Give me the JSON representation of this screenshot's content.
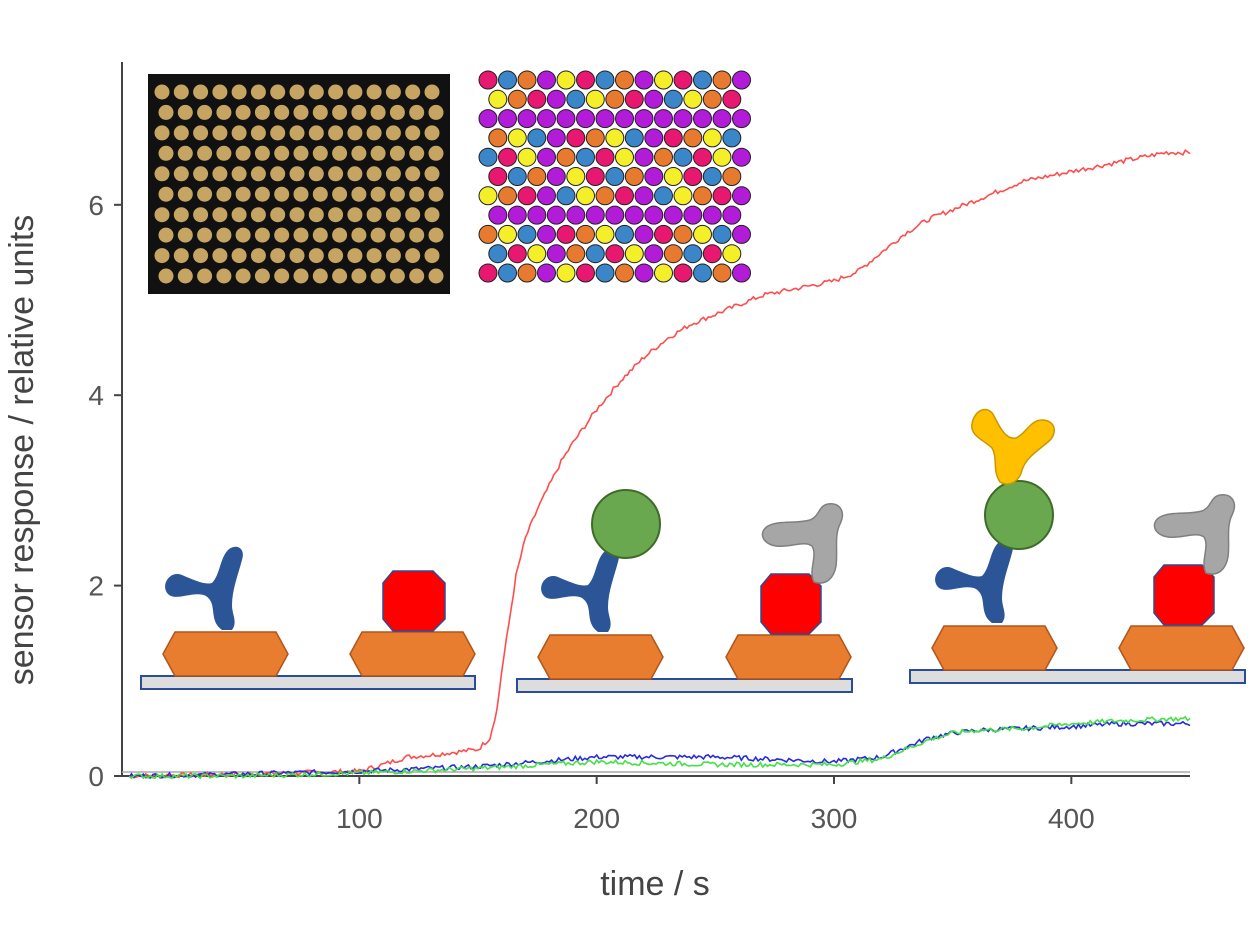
{
  "chart_data": {
    "type": "line",
    "xlabel": "time / s",
    "ylabel": "sensor response / relative units",
    "xlim": [
      0,
      450
    ],
    "ylim": [
      0,
      7.5
    ],
    "x_ticks": [
      "100",
      "200",
      "300",
      "400"
    ],
    "x_tick_values": [
      100,
      200,
      300,
      400
    ],
    "y_ticks": [
      "0",
      "2",
      "4",
      "6"
    ],
    "y_tick_values": [
      0,
      2,
      4,
      6
    ],
    "grid": false,
    "legend": "none",
    "series": [
      {
        "color": "#ff4d4d",
        "x": [
          3,
          50,
          100,
          110,
          120,
          130,
          140,
          150,
          155,
          158,
          160,
          163,
          166,
          170,
          175,
          180,
          185,
          190,
          200,
          210,
          220,
          230,
          240,
          250,
          260,
          270,
          280,
          290,
          300,
          310,
          320,
          330,
          340,
          350,
          360,
          370,
          380,
          390,
          400,
          410,
          420,
          430,
          440,
          450
        ],
        "y": [
          0.0,
          0.02,
          0.05,
          0.12,
          0.2,
          0.22,
          0.25,
          0.28,
          0.4,
          0.7,
          1.1,
          1.6,
          2.1,
          2.5,
          2.8,
          3.05,
          3.3,
          3.5,
          3.85,
          4.15,
          4.4,
          4.6,
          4.75,
          4.85,
          4.95,
          5.05,
          5.1,
          5.15,
          5.2,
          5.3,
          5.5,
          5.7,
          5.85,
          5.95,
          6.05,
          6.15,
          6.25,
          6.3,
          6.35,
          6.4,
          6.45,
          6.5,
          6.55,
          6.55
        ]
      },
      {
        "color": "#2a2ae0",
        "x": [
          3,
          50,
          100,
          150,
          200,
          250,
          300,
          320,
          330,
          340,
          350,
          360,
          380,
          400,
          420,
          440,
          450
        ],
        "y": [
          0.0,
          0.02,
          0.05,
          0.1,
          0.2,
          0.2,
          0.15,
          0.2,
          0.3,
          0.4,
          0.45,
          0.48,
          0.5,
          0.52,
          0.55,
          0.55,
          0.55
        ]
      },
      {
        "color": "#44e044",
        "x": [
          3,
          50,
          100,
          150,
          200,
          250,
          300,
          320,
          330,
          340,
          350,
          360,
          380,
          400,
          420,
          440,
          450
        ],
        "y": [
          0.0,
          0.0,
          0.03,
          0.08,
          0.15,
          0.12,
          0.12,
          0.18,
          0.28,
          0.38,
          0.45,
          0.48,
          0.5,
          0.55,
          0.58,
          0.6,
          0.6
        ]
      }
    ]
  },
  "insets": {
    "photo_array": {
      "rows": 10,
      "cols": 15,
      "background": "#111111",
      "spot_color": "#d9b66a"
    },
    "color_array": {
      "rows": 11,
      "cols": 14,
      "palette": [
        "#e8176f",
        "#e87a2f",
        "#f5ef2a",
        "#3a86c8",
        "#b21cd8"
      ]
    },
    "schematics": {
      "substrate_color": "#dddddd",
      "substrate_border": "#2b4b9b",
      "block_color": "#e87d30",
      "antibody_color": "#2c5597",
      "target_marker_color": "#ff0000",
      "antigen_color": "#6aa84f",
      "interferent_color": "#a6a6a6",
      "secondary_antibody_color": "#ffc000"
    }
  }
}
